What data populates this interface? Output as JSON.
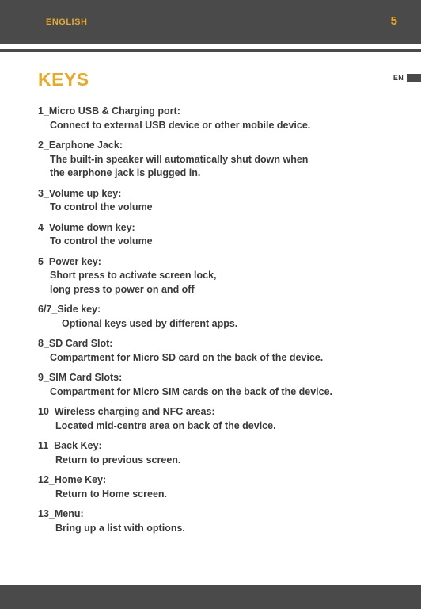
{
  "header": {
    "language": "ENGLISH",
    "page_number": "5"
  },
  "side_tab": {
    "label": "EN"
  },
  "section": {
    "title": "KEYS"
  },
  "items": [
    {
      "num": "1",
      "label": "Micro USB & Charging port:",
      "desc": "Connect to external USB device or other mobile device.",
      "pad": "pad1"
    },
    {
      "num": "2",
      "label": "Earphone Jack:",
      "desc": "The built-in speaker will automatically shut down when\nthe earphone jack is plugged in.",
      "pad": "pad1"
    },
    {
      "num": "3",
      "label": "Volume up key:",
      "desc": "To control the volume",
      "pad": "pad1"
    },
    {
      "num": "4",
      "label": "Volume down key:",
      "desc": "To control the volume",
      "pad": "pad1"
    },
    {
      "num": "5",
      "label": "Power key:",
      "desc": "Short press to activate screen lock,\nlong press to power on and off",
      "pad": "pad1"
    },
    {
      "num": "6/7",
      "label": "Side key:",
      "desc": "Optional keys used by different apps.",
      "pad": "pad3"
    },
    {
      "num": "8",
      "label": "SD Card Slot:",
      "desc": "Compartment for Micro SD card on the back of the device.",
      "pad": "pad1"
    },
    {
      "num": "9",
      "label": "SIM Card Slots:",
      "desc": "Compartment for Micro SIM cards on the back of the device.",
      "pad": "pad1"
    },
    {
      "num": "10",
      "label": "Wireless charging and NFC areas:",
      "desc": "Located mid-centre area on back of the device.",
      "pad": "pad2"
    },
    {
      "num": "11",
      "label": "Back Key:",
      "desc": "Return to previous screen.",
      "pad": "pad2"
    },
    {
      "num": "12",
      "label": "Home Key:",
      "desc": "Return to Home screen.",
      "pad": "pad2"
    },
    {
      "num": "13",
      "label": "Menu:",
      "desc": "Bring up a list with options.",
      "pad": "pad2"
    }
  ]
}
